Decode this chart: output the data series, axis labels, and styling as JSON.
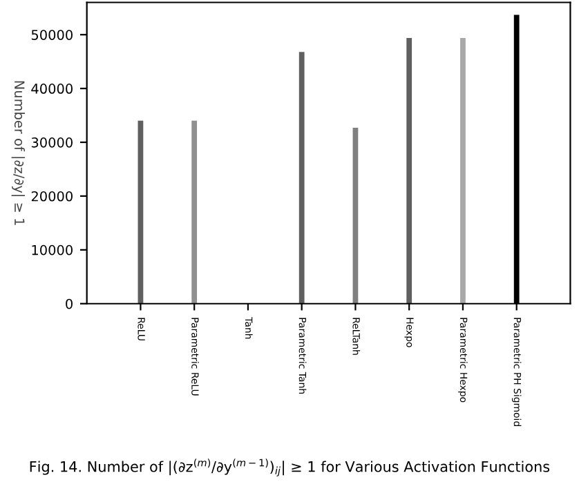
{
  "chart_data": {
    "type": "bar",
    "categories": [
      "ReLU",
      "Parametric ReLU",
      "Tanh",
      "Parametric Tanh",
      "ReLTanh",
      "Hexpo",
      "Parametric Hexpo",
      "Parametric PH Sigmoid"
    ],
    "values": [
      34000,
      34000,
      0,
      46800,
      32700,
      49400,
      49400,
      53700
    ],
    "colors": [
      "#606060",
      "#909090",
      "#707070",
      "#606060",
      "#808080",
      "#606060",
      "#a8a8a8",
      "#000000"
    ],
    "ylabel": "Number of |∂z/∂y| ≥ 1",
    "ylim": [
      0,
      56000
    ],
    "yticks": [
      0,
      10000,
      20000,
      30000,
      40000,
      50000
    ],
    "grid": false,
    "legend": false,
    "annotations": [
      "Fig. 14. Number of |(∂z$^{(m)}$/∂y$^{(m−1)}$)$_{ij}$| ≥ 1 for Various Activation Functions"
    ]
  }
}
